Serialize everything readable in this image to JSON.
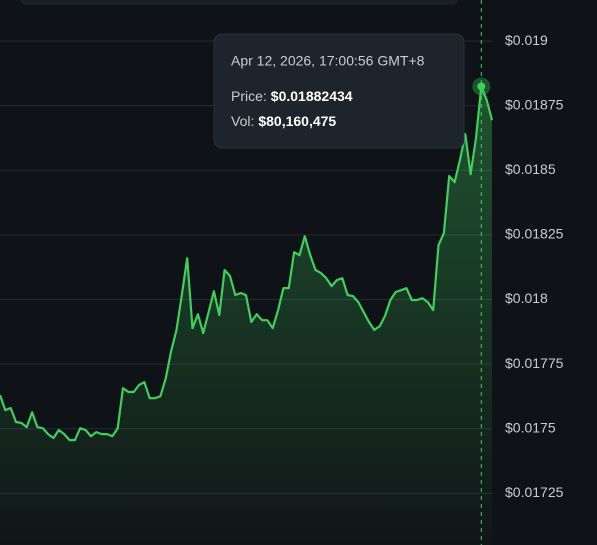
{
  "chart_data": {
    "type": "line",
    "series": [
      {
        "color": "#3fcf5e",
        "values": [
          0.01763,
          0.017572,
          0.01758,
          0.017526,
          0.017522,
          0.017506,
          0.017564,
          0.017506,
          0.017502,
          0.017479,
          0.017464,
          0.017495,
          0.017479,
          0.017456,
          0.017456,
          0.017502,
          0.017495,
          0.017471,
          0.017487,
          0.017479,
          0.017479,
          0.017471,
          0.017502,
          0.017657,
          0.017642,
          0.017642,
          0.017669,
          0.01768,
          0.017618,
          0.017618,
          0.017626,
          0.017696,
          0.0178,
          0.017882,
          0.018017,
          0.01816,
          0.017889,
          0.017943,
          0.01787,
          0.017951,
          0.018032,
          0.01794,
          0.018114,
          0.018091,
          0.018017,
          0.018025,
          0.018017,
          0.017913,
          0.017943,
          0.01792,
          0.01792,
          0.017889,
          0.017959,
          0.018044,
          0.018044,
          0.018183,
          0.018172,
          0.018245,
          0.018172,
          0.018114,
          0.018102,
          0.018083,
          0.018052,
          0.018075,
          0.018083,
          0.018017,
          0.018013,
          0.01799,
          0.017951,
          0.017913,
          0.017882,
          0.017897,
          0.017936,
          0.017998,
          0.018029,
          0.018036,
          0.018044,
          0.017998,
          0.017998,
          0.018005,
          0.01799,
          0.017959,
          0.01821,
          0.018257,
          0.018478,
          0.018454,
          0.018539,
          0.01864,
          0.018485,
          0.018625,
          0.01882434,
          0.018772,
          0.018694
        ]
      }
    ],
    "ylim": [
      0.01705,
      0.019159
    ],
    "yticks": [
      {
        "value": 0.019,
        "label": "$0.019"
      },
      {
        "value": 0.01875,
        "label": "$0.01875"
      },
      {
        "value": 0.0185,
        "label": "$0.0185"
      },
      {
        "value": 0.01825,
        "label": "$0.01825"
      },
      {
        "value": 0.018,
        "label": "$0.018"
      },
      {
        "value": 0.01775,
        "label": "$0.01775"
      },
      {
        "value": 0.0175,
        "label": "$0.0175"
      },
      {
        "value": 0.01725,
        "label": "$0.01725"
      }
    ],
    "grid": true,
    "tooltip": {
      "date": "Apr 12, 2026, 17:00:56 GMT+8",
      "price_label": "Price:",
      "price": "$0.01882434",
      "vol_label": "Vol:",
      "vol": "$80,160,475"
    }
  }
}
